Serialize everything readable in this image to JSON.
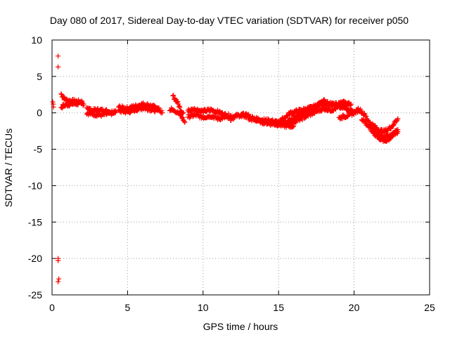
{
  "chart_data": {
    "type": "scatter",
    "title": "Day 080 of 2017, Sidereal Day-to-day VTEC variation (SDTVAR) for receiver p050",
    "xlabel": "GPS time / hours",
    "ylabel": "SDTVAR / TECUs",
    "xlim": [
      0,
      25
    ],
    "ylim": [
      -25,
      10
    ],
    "xticks": [
      "0",
      "5",
      "10",
      "15",
      "20",
      "25"
    ],
    "yticks": [
      "10",
      "5",
      "0",
      "-5",
      "-10",
      "-15",
      "-20",
      "-25"
    ],
    "marker": "+",
    "color": "#ff0000",
    "grid": true,
    "series": [
      {
        "name": "SDTVAR",
        "outliers": [
          [
            0.4,
            7.8
          ],
          [
            0.4,
            6.3
          ],
          [
            0.4,
            -20.0
          ],
          [
            0.4,
            -20.3
          ],
          [
            0.45,
            -22.8
          ],
          [
            0.4,
            -23.2
          ],
          [
            0.05,
            1.5
          ],
          [
            0.1,
            0.8
          ],
          [
            0.08,
            1.2
          ]
        ],
        "tracks": [
          [
            [
              0.6,
              2.6
            ],
            [
              0.8,
              2.0
            ],
            [
              1.0,
              1.7
            ],
            [
              1.5,
              1.6
            ],
            [
              2.0,
              1.5
            ]
          ],
          [
            [
              0.6,
              0.8
            ],
            [
              0.8,
              1.0
            ],
            [
              1.2,
              1.2
            ],
            [
              1.8,
              1.3
            ],
            [
              2.1,
              1.2
            ]
          ],
          [
            [
              2.3,
              0.8
            ],
            [
              2.6,
              0.3
            ],
            [
              3.0,
              0.4
            ],
            [
              3.5,
              0.3
            ],
            [
              4.0,
              0.1
            ],
            [
              4.2,
              0.3
            ]
          ],
          [
            [
              2.3,
              0.0
            ],
            [
              2.8,
              -0.2
            ],
            [
              3.3,
              -0.3
            ],
            [
              3.8,
              -0.1
            ],
            [
              4.2,
              0.0
            ]
          ],
          [
            [
              4.4,
              0.8
            ],
            [
              5.0,
              0.6
            ],
            [
              5.5,
              0.9
            ],
            [
              6.0,
              1.2
            ],
            [
              6.5,
              1.0
            ],
            [
              7.0,
              0.6
            ],
            [
              7.3,
              0.0
            ]
          ],
          [
            [
              4.4,
              0.3
            ],
            [
              5.0,
              0.1
            ],
            [
              5.5,
              0.4
            ],
            [
              6.0,
              0.7
            ],
            [
              6.5,
              0.5
            ],
            [
              7.0,
              0.3
            ]
          ],
          [
            [
              8.0,
              2.3
            ],
            [
              8.3,
              1.5
            ],
            [
              8.5,
              0.5
            ],
            [
              8.7,
              0.0
            ]
          ],
          [
            [
              7.8,
              0.3
            ],
            [
              8.0,
              0.6
            ],
            [
              8.2,
              0.2
            ],
            [
              8.5,
              -0.3
            ],
            [
              8.8,
              -1.3
            ]
          ],
          [
            [
              9.0,
              0.3
            ],
            [
              9.5,
              0.5
            ],
            [
              10.0,
              0.2
            ],
            [
              10.5,
              0.4
            ],
            [
              11.0,
              0.1
            ],
            [
              11.5,
              -0.3
            ],
            [
              12.0,
              -0.5
            ],
            [
              12.5,
              -0.3
            ],
            [
              13.0,
              -0.2
            ]
          ],
          [
            [
              9.0,
              -0.5
            ],
            [
              9.5,
              -0.3
            ],
            [
              10.0,
              -0.6
            ],
            [
              10.5,
              -0.4
            ],
            [
              11.0,
              -0.8
            ],
            [
              11.5,
              -0.6
            ],
            [
              12.0,
              -0.9
            ]
          ],
          [
            [
              12.5,
              -0.3
            ],
            [
              13.0,
              -0.5
            ],
            [
              13.5,
              -0.8
            ],
            [
              14.0,
              -1.0
            ],
            [
              14.5,
              -1.1
            ],
            [
              15.0,
              -1.3
            ],
            [
              15.5,
              -1.2
            ],
            [
              16.0,
              -0.9
            ]
          ],
          [
            [
              13.0,
              -0.8
            ],
            [
              13.5,
              -1.0
            ],
            [
              14.0,
              -1.3
            ],
            [
              14.5,
              -1.5
            ],
            [
              15.0,
              -1.6
            ],
            [
              15.5,
              -1.8
            ],
            [
              16.0,
              -1.8
            ]
          ],
          [
            [
              15.2,
              -1.0
            ],
            [
              15.5,
              -0.5
            ],
            [
              15.8,
              0.0
            ],
            [
              16.2,
              0.2
            ],
            [
              16.8,
              0.5
            ],
            [
              17.3,
              0.8
            ],
            [
              17.8,
              1.3
            ],
            [
              18.3,
              1.0
            ],
            [
              18.8,
              1.2
            ],
            [
              19.3,
              1.4
            ],
            [
              19.8,
              1.2
            ]
          ],
          [
            [
              15.5,
              -1.5
            ],
            [
              16.0,
              -1.2
            ],
            [
              16.5,
              -0.8
            ],
            [
              17.0,
              -0.3
            ],
            [
              17.5,
              0.2
            ],
            [
              18.0,
              0.6
            ],
            [
              18.5,
              0.4
            ],
            [
              19.0,
              0.8
            ],
            [
              19.5,
              0.6
            ],
            [
              20.0,
              0.2
            ]
          ],
          [
            [
              16.0,
              -0.6
            ],
            [
              16.5,
              -0.3
            ],
            [
              17.0,
              0.3
            ],
            [
              17.5,
              0.9
            ],
            [
              18.0,
              1.6
            ],
            [
              18.5,
              1.2
            ],
            [
              19.0,
              1.0
            ],
            [
              19.5,
              0.9
            ]
          ],
          [
            [
              19.0,
              -0.7
            ],
            [
              19.5,
              -0.4
            ],
            [
              20.0,
              0.0
            ],
            [
              20.3,
              0.4
            ]
          ],
          [
            [
              20.2,
              0.6
            ],
            [
              20.5,
              0.2
            ],
            [
              20.8,
              -0.6
            ],
            [
              21.0,
              -1.3
            ],
            [
              21.3,
              -1.8
            ],
            [
              21.6,
              -2.3
            ],
            [
              22.0,
              -2.6
            ],
            [
              22.3,
              -2.2
            ],
            [
              22.6,
              -1.6
            ],
            [
              22.9,
              -0.8
            ]
          ],
          [
            [
              20.5,
              -0.8
            ],
            [
              20.8,
              -1.5
            ],
            [
              21.1,
              -2.3
            ],
            [
              21.4,
              -3.0
            ],
            [
              21.7,
              -3.5
            ],
            [
              22.0,
              -3.9
            ],
            [
              22.3,
              -3.6
            ],
            [
              22.6,
              -3.1
            ],
            [
              22.9,
              -2.6
            ]
          ],
          [
            [
              21.0,
              -1.6
            ],
            [
              21.5,
              -2.8
            ],
            [
              22.0,
              -3.3
            ],
            [
              22.5,
              -3.0
            ],
            [
              22.9,
              -2.3
            ]
          ]
        ]
      }
    ]
  }
}
